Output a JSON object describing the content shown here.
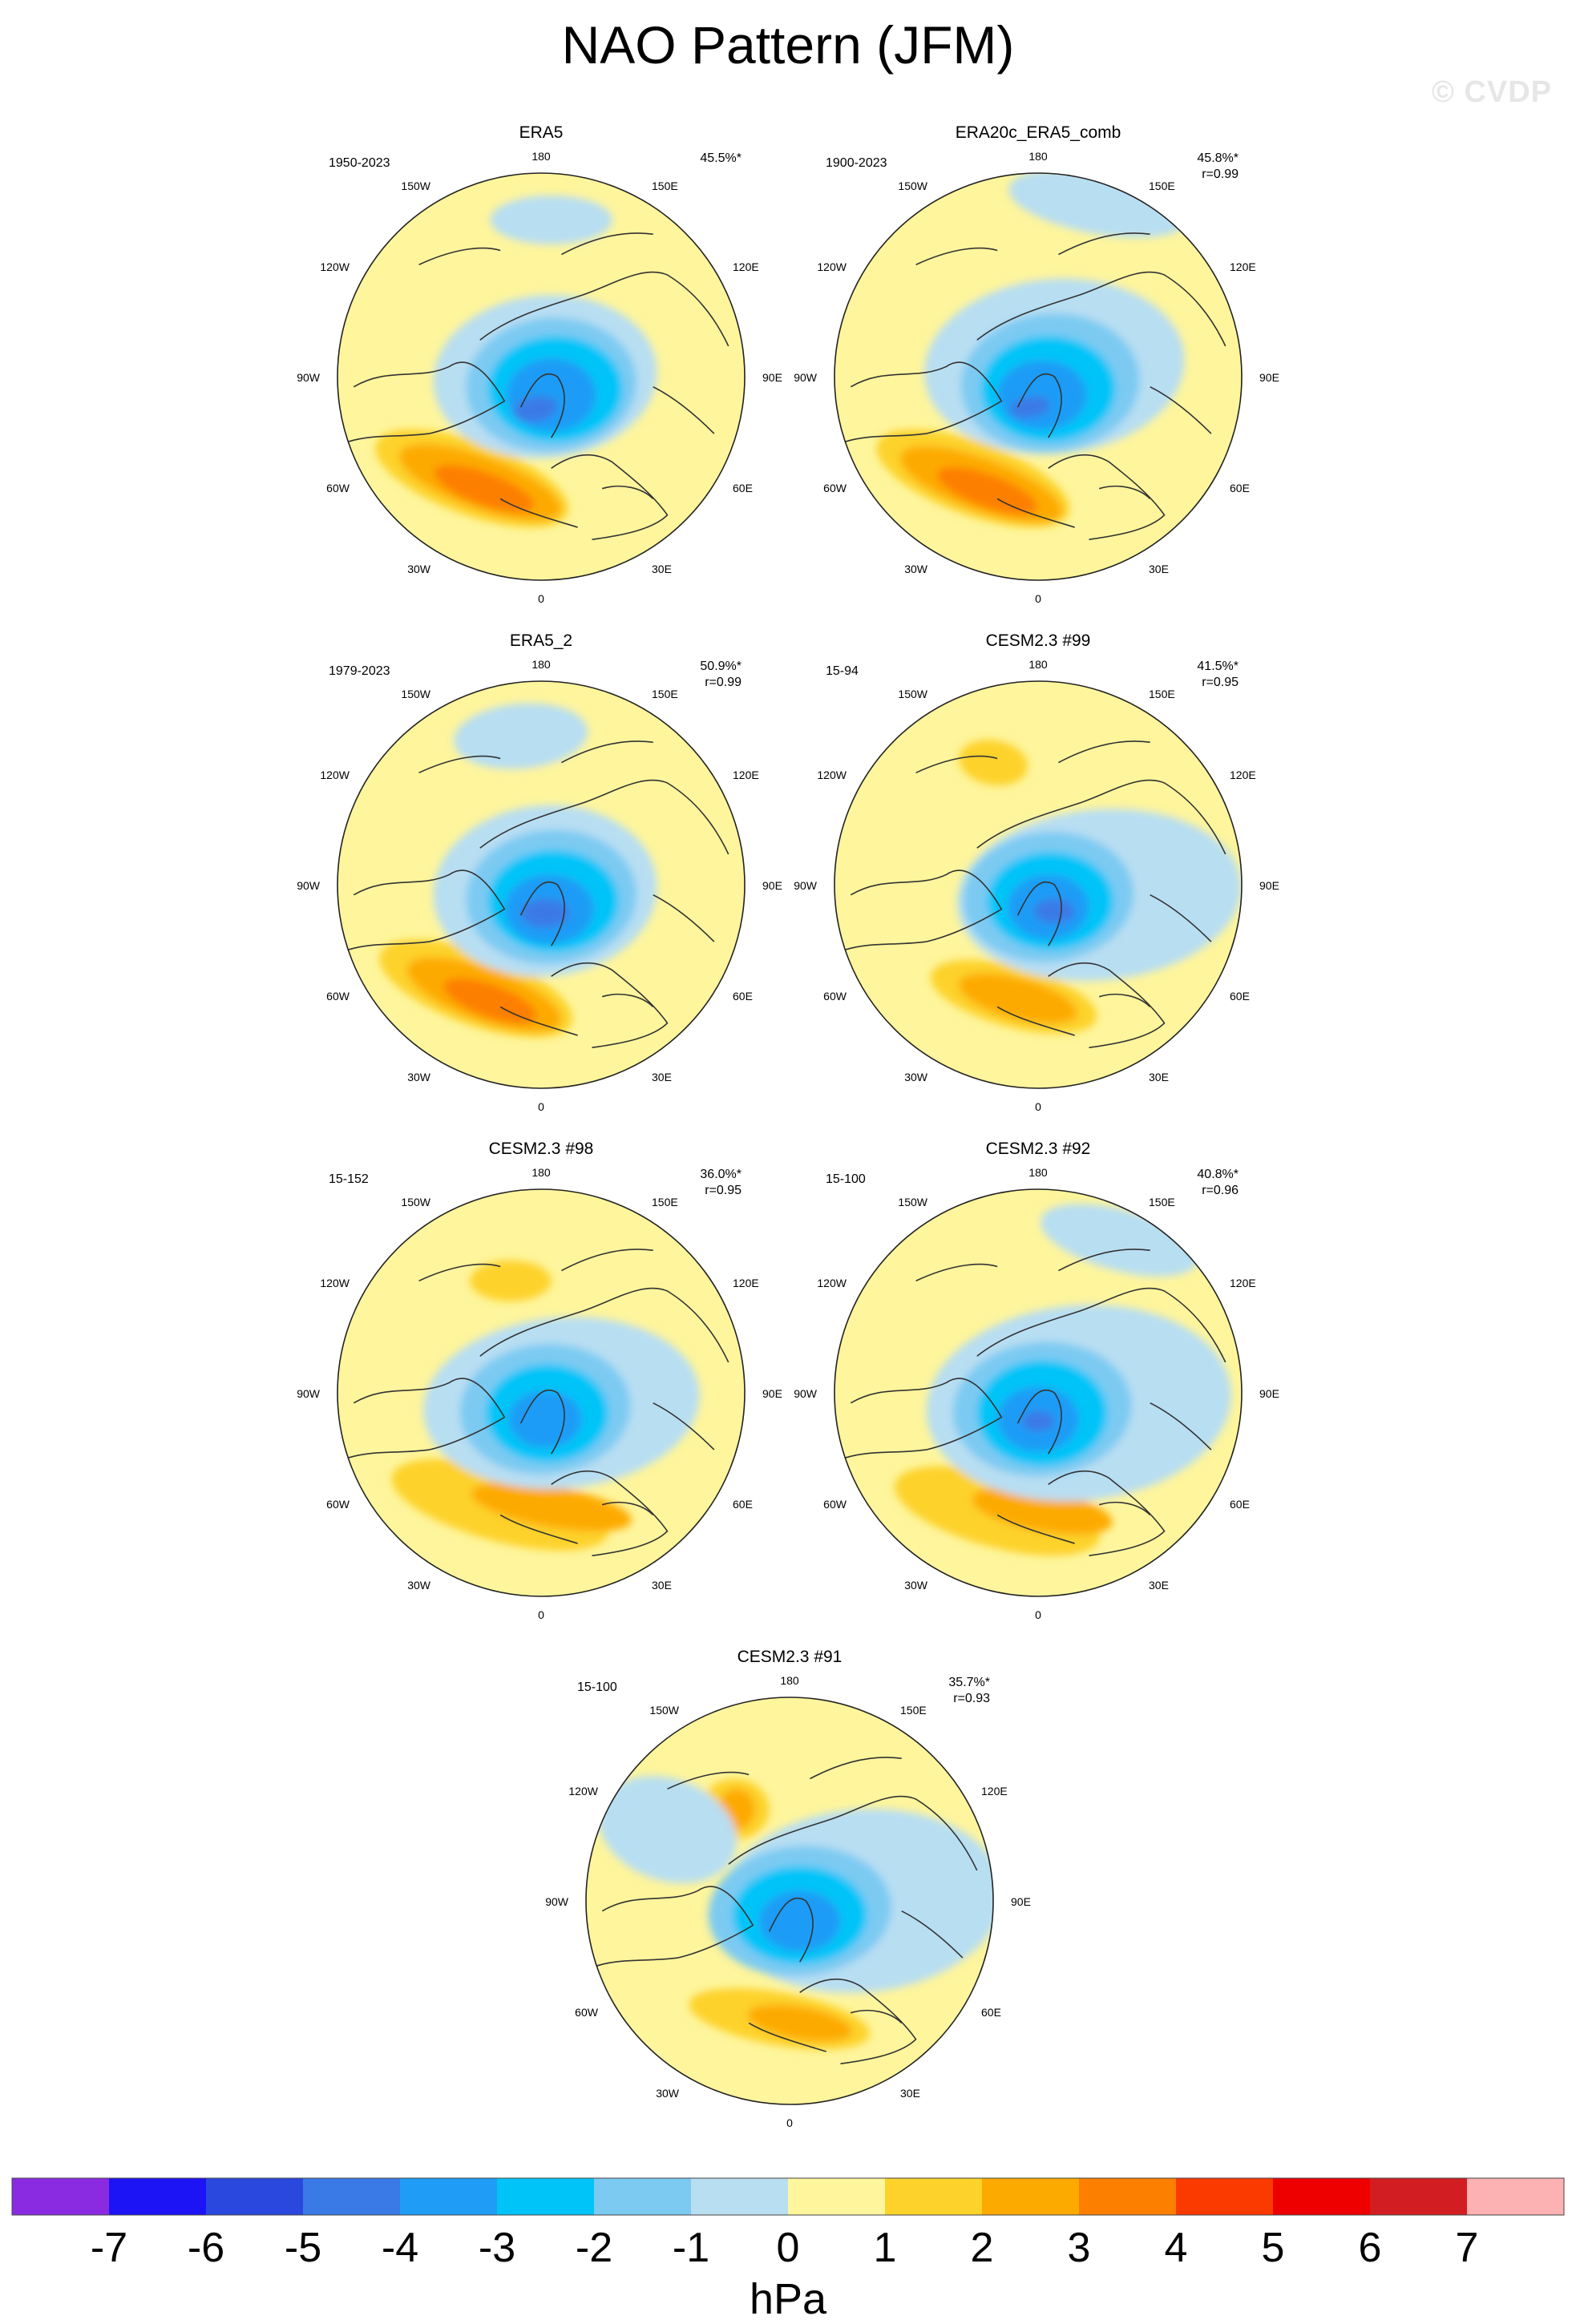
{
  "page": {
    "title": "NAO Pattern (JFM)",
    "watermark": "© CVDP"
  },
  "chart_data": [
    {
      "type": "contour-map",
      "projection": "north-polar-stereographic",
      "title": "ERA5",
      "period": "1950-2023",
      "pct_variance": "45.5%*",
      "pattern_corr": ""
    },
    {
      "type": "contour-map",
      "projection": "north-polar-stereographic",
      "title": "ERA20c_ERA5_comb",
      "period": "1900-2023",
      "pct_variance": "45.8%*",
      "pattern_corr": "r=0.99"
    },
    {
      "type": "contour-map",
      "projection": "north-polar-stereographic",
      "title": "ERA5_2",
      "period": "1979-2023",
      "pct_variance": "50.9%*",
      "pattern_corr": "r=0.99"
    },
    {
      "type": "contour-map",
      "projection": "north-polar-stereographic",
      "title": "CESM2.3 #99",
      "period": "15-94",
      "pct_variance": "41.5%*",
      "pattern_corr": "r=0.95"
    },
    {
      "type": "contour-map",
      "projection": "north-polar-stereographic",
      "title": "CESM2.3 #98",
      "period": "15-152",
      "pct_variance": "36.0%*",
      "pattern_corr": "r=0.95"
    },
    {
      "type": "contour-map",
      "projection": "north-polar-stereographic",
      "title": "CESM2.3 #92",
      "period": "15-100",
      "pct_variance": "40.8%*",
      "pattern_corr": "r=0.96"
    },
    {
      "type": "contour-map",
      "projection": "north-polar-stereographic",
      "title": "CESM2.3 #91",
      "period": "15-100",
      "pct_variance": "35.7%*",
      "pattern_corr": "r=0.93"
    }
  ],
  "longitude_labels": [
    "180",
    "150E",
    "120E",
    "90E",
    "60E",
    "30E",
    "0",
    "30W",
    "60W",
    "90W",
    "120W",
    "150W"
  ],
  "colorbar": {
    "unit": "hPa",
    "ticks": [
      "-7",
      "-6",
      "-5",
      "-4",
      "-3",
      "-2",
      "-1",
      "0",
      "1",
      "2",
      "3",
      "4",
      "5",
      "6",
      "7"
    ],
    "colors": [
      "#8a2be2",
      "#1c14f5",
      "#2a48de",
      "#3a7ae6",
      "#1e9cf6",
      "#00c4f8",
      "#7ccaf2",
      "#b8def2",
      "#fef59c",
      "#fdd22b",
      "#fdaa00",
      "#fd7f00",
      "#fb3a00",
      "#ef0000",
      "#d21e22",
      "#fcb1b3"
    ]
  }
}
